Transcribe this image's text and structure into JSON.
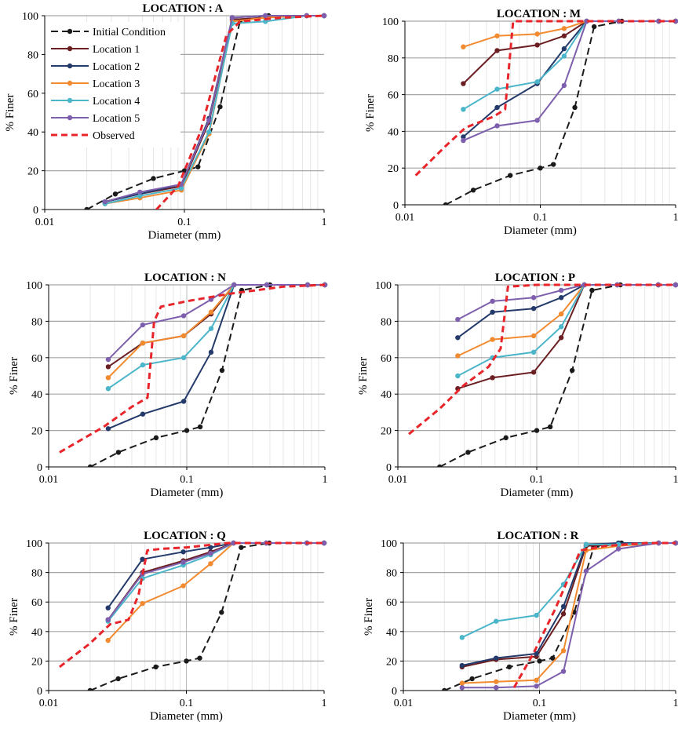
{
  "chart_data": [
    {
      "type": "line",
      "title": "LOCATION : A",
      "xlabel": "Diameter (mm)",
      "ylabel": "% Finer",
      "xscale": "log",
      "xlim": [
        0.01,
        1
      ],
      "ylim": [
        0,
        100
      ],
      "xtick_labels": [
        "0.01",
        "0.1",
        "1"
      ],
      "ytick_labels": [
        "0",
        "20",
        "40",
        "60",
        "80",
        "100"
      ],
      "legend_position": "upper-left",
      "series": [
        {
          "name": "Initial Condition",
          "x": [
            0.02,
            0.032,
            0.06,
            0.1,
            0.125,
            0.18,
            0.25,
            0.4,
            1
          ],
          "y": [
            0,
            8,
            16,
            20,
            22,
            53,
            97,
            100,
            100
          ]
        },
        {
          "name": "Location 1",
          "x": [
            0.027,
            0.048,
            0.095,
            0.15,
            0.22,
            0.38,
            0.75,
            1
          ],
          "y": [
            4,
            8,
            12,
            45,
            98,
            99,
            100,
            100
          ]
        },
        {
          "name": "Location 2",
          "x": [
            0.027,
            0.048,
            0.095,
            0.15,
            0.22,
            0.38,
            0.75,
            1
          ],
          "y": [
            4,
            8,
            13,
            47,
            99,
            100,
            100,
            100
          ]
        },
        {
          "name": "Location 3",
          "x": [
            0.027,
            0.048,
            0.095,
            0.15,
            0.22,
            0.38,
            0.75,
            1
          ],
          "y": [
            3,
            6,
            10,
            39,
            97,
            99,
            100,
            100
          ]
        },
        {
          "name": "Location 4",
          "x": [
            0.027,
            0.048,
            0.095,
            0.15,
            0.22,
            0.38,
            0.75,
            1
          ],
          "y": [
            3,
            7,
            11,
            40,
            96,
            97,
            100,
            100
          ]
        },
        {
          "name": "Location 5",
          "x": [
            0.027,
            0.048,
            0.095,
            0.15,
            0.22,
            0.38,
            0.75,
            1
          ],
          "y": [
            4,
            9,
            13,
            46,
            99,
            100,
            100,
            100
          ]
        },
        {
          "name": "Observed",
          "x": [
            0.063,
            0.09,
            0.13,
            0.2,
            0.25,
            0.5,
            1
          ],
          "y": [
            0,
            12,
            40,
            90,
            97,
            99,
            100
          ]
        }
      ]
    },
    {
      "type": "line",
      "title": "LOCATION : M",
      "xlabel": "Diameter (mm)",
      "ylabel": "% Finer",
      "xscale": "log",
      "xlim": [
        0.01,
        1
      ],
      "ylim": [
        0,
        100
      ],
      "xtick_labels": [
        "0.01",
        "0.1",
        "1"
      ],
      "ytick_labels": [
        "0",
        "20",
        "40",
        "60",
        "80",
        "100"
      ],
      "series": [
        {
          "name": "Initial Condition",
          "x": [
            0.02,
            0.032,
            0.06,
            0.1,
            0.125,
            0.18,
            0.25,
            0.4,
            1
          ],
          "y": [
            0,
            8,
            16,
            20,
            22,
            53,
            97,
            100,
            100
          ]
        },
        {
          "name": "Location 1",
          "x": [
            0.027,
            0.048,
            0.095,
            0.15,
            0.22,
            0.38,
            0.75,
            1
          ],
          "y": [
            66,
            84,
            87,
            92,
            100,
            100,
            100,
            100
          ]
        },
        {
          "name": "Location 2",
          "x": [
            0.027,
            0.048,
            0.095,
            0.15,
            0.22,
            0.38,
            0.75,
            1
          ],
          "y": [
            37,
            53,
            66,
            85,
            100,
            100,
            100,
            100
          ]
        },
        {
          "name": "Location 3",
          "x": [
            0.027,
            0.048,
            0.095,
            0.15,
            0.22,
            0.38,
            0.75,
            1
          ],
          "y": [
            86,
            92,
            93,
            96,
            100,
            100,
            100,
            100
          ]
        },
        {
          "name": "Location 4",
          "x": [
            0.027,
            0.048,
            0.095,
            0.15,
            0.22,
            0.38,
            0.75,
            1
          ],
          "y": [
            52,
            63,
            67,
            81,
            100,
            100,
            100,
            100
          ]
        },
        {
          "name": "Location 5",
          "x": [
            0.027,
            0.048,
            0.095,
            0.15,
            0.22,
            0.38,
            0.75,
            1
          ],
          "y": [
            35,
            43,
            46,
            65,
            100,
            100,
            100,
            100
          ]
        },
        {
          "name": "Observed",
          "x": [
            0.012,
            0.02,
            0.028,
            0.045,
            0.055,
            0.063,
            0.1,
            0.2,
            1
          ],
          "y": [
            16,
            32,
            42,
            48,
            52,
            100,
            100,
            100,
            100
          ]
        }
      ]
    },
    {
      "type": "line",
      "title": "LOCATION : N",
      "xlabel": "Diameter (mm)",
      "ylabel": "% Finer",
      "xscale": "log",
      "xlim": [
        0.01,
        1
      ],
      "ylim": [
        0,
        100
      ],
      "xtick_labels": [
        "0.01",
        "0.1",
        "1"
      ],
      "ytick_labels": [
        "0",
        "20",
        "40",
        "60",
        "80",
        "100"
      ],
      "series": [
        {
          "name": "Initial Condition",
          "x": [
            0.02,
            0.032,
            0.06,
            0.1,
            0.125,
            0.18,
            0.25,
            0.4,
            1
          ],
          "y": [
            0,
            8,
            16,
            20,
            22,
            53,
            97,
            100,
            100
          ]
        },
        {
          "name": "Location 1",
          "x": [
            0.027,
            0.048,
            0.095,
            0.15,
            0.22,
            0.38,
            0.75,
            1
          ],
          "y": [
            55,
            68,
            72,
            84,
            100,
            100,
            100,
            100
          ]
        },
        {
          "name": "Location 2",
          "x": [
            0.027,
            0.048,
            0.095,
            0.15,
            0.22,
            0.38,
            0.75,
            1
          ],
          "y": [
            21,
            29,
            36,
            63,
            100,
            100,
            100,
            100
          ]
        },
        {
          "name": "Location 3",
          "x": [
            0.027,
            0.048,
            0.095,
            0.15,
            0.22,
            0.38,
            0.75,
            1
          ],
          "y": [
            49,
            68,
            72,
            85,
            100,
            100,
            100,
            100
          ]
        },
        {
          "name": "Location 4",
          "x": [
            0.027,
            0.048,
            0.095,
            0.15,
            0.22,
            0.38,
            0.75,
            1
          ],
          "y": [
            43,
            56,
            60,
            76,
            100,
            100,
            100,
            100
          ]
        },
        {
          "name": "Location 5",
          "x": [
            0.027,
            0.048,
            0.095,
            0.15,
            0.22,
            0.38,
            0.75,
            1
          ],
          "y": [
            59,
            78,
            83,
            92,
            100,
            100,
            100,
            100
          ]
        },
        {
          "name": "Observed",
          "x": [
            0.012,
            0.025,
            0.04,
            0.052,
            0.058,
            0.065,
            0.1,
            0.2,
            0.5,
            1
          ],
          "y": [
            8,
            22,
            33,
            38,
            80,
            88,
            91,
            95,
            99,
            100
          ]
        }
      ]
    },
    {
      "type": "line",
      "title": "LOCATION : P",
      "xlabel": "Diameter (mm)",
      "ylabel": "% Finer",
      "xscale": "log",
      "xlim": [
        0.01,
        1
      ],
      "ylim": [
        0,
        100
      ],
      "xtick_labels": [
        "0.01",
        "0.1",
        "1"
      ],
      "ytick_labels": [
        "0",
        "20",
        "40",
        "60",
        "80",
        "100"
      ],
      "series": [
        {
          "name": "Initial Condition",
          "x": [
            0.02,
            0.032,
            0.06,
            0.1,
            0.125,
            0.18,
            0.25,
            0.4,
            1
          ],
          "y": [
            0,
            8,
            16,
            20,
            22,
            53,
            97,
            100,
            100
          ]
        },
        {
          "name": "Location 1",
          "x": [
            0.027,
            0.048,
            0.095,
            0.15,
            0.22,
            0.38,
            0.75,
            1
          ],
          "y": [
            43,
            49,
            52,
            71,
            100,
            100,
            100,
            100
          ]
        },
        {
          "name": "Location 2",
          "x": [
            0.027,
            0.048,
            0.095,
            0.15,
            0.22,
            0.38,
            0.75,
            1
          ],
          "y": [
            71,
            85,
            87,
            93,
            100,
            100,
            100,
            100
          ]
        },
        {
          "name": "Location 3",
          "x": [
            0.027,
            0.048,
            0.095,
            0.15,
            0.22,
            0.38,
            0.75,
            1
          ],
          "y": [
            61,
            70,
            72,
            84,
            100,
            100,
            100,
            100
          ]
        },
        {
          "name": "Location 4",
          "x": [
            0.027,
            0.048,
            0.095,
            0.15,
            0.22,
            0.38,
            0.75,
            1
          ],
          "y": [
            50,
            60,
            63,
            77,
            100,
            100,
            100,
            100
          ]
        },
        {
          "name": "Location 5",
          "x": [
            0.027,
            0.048,
            0.095,
            0.15,
            0.22,
            0.38,
            0.75,
            1
          ],
          "y": [
            81,
            91,
            93,
            97,
            100,
            100,
            100,
            100
          ]
        },
        {
          "name": "Observed",
          "x": [
            0.012,
            0.02,
            0.03,
            0.045,
            0.055,
            0.062,
            0.1,
            0.2,
            1
          ],
          "y": [
            18,
            32,
            45,
            55,
            65,
            99,
            100,
            100,
            100
          ]
        }
      ]
    },
    {
      "type": "line",
      "title": "LOCATION : Q",
      "xlabel": "Diameter (mm)",
      "ylabel": "% Finer",
      "xscale": "log",
      "xlim": [
        0.01,
        1
      ],
      "ylim": [
        0,
        100
      ],
      "xtick_labels": [
        "0.01",
        "0.1",
        "1"
      ],
      "ytick_labels": [
        "0",
        "20",
        "40",
        "60",
        "80",
        "100"
      ],
      "series": [
        {
          "name": "Initial Condition",
          "x": [
            0.02,
            0.032,
            0.06,
            0.1,
            0.125,
            0.18,
            0.25,
            0.4,
            1
          ],
          "y": [
            0,
            8,
            16,
            20,
            22,
            53,
            97,
            100,
            100
          ]
        },
        {
          "name": "Location 1",
          "x": [
            0.027,
            0.048,
            0.095,
            0.15,
            0.22,
            0.38,
            0.75,
            1
          ],
          "y": [
            48,
            80,
            88,
            94,
            100,
            100,
            100,
            100
          ]
        },
        {
          "name": "Location 2",
          "x": [
            0.027,
            0.048,
            0.095,
            0.15,
            0.22,
            0.38,
            0.75,
            1
          ],
          "y": [
            56,
            89,
            94,
            97,
            100,
            100,
            100,
            100
          ]
        },
        {
          "name": "Location 3",
          "x": [
            0.027,
            0.048,
            0.095,
            0.15,
            0.22,
            0.38,
            0.75,
            1
          ],
          "y": [
            34,
            59,
            71,
            86,
            100,
            100,
            100,
            100
          ]
        },
        {
          "name": "Location 4",
          "x": [
            0.027,
            0.048,
            0.095,
            0.15,
            0.22,
            0.38,
            0.75,
            1
          ],
          "y": [
            47,
            76,
            85,
            92,
            100,
            100,
            100,
            100
          ]
        },
        {
          "name": "Location 5",
          "x": [
            0.027,
            0.048,
            0.095,
            0.15,
            0.22,
            0.38,
            0.75,
            1
          ],
          "y": [
            48,
            79,
            87,
            93,
            100,
            100,
            100,
            100
          ]
        },
        {
          "name": "Observed",
          "x": [
            0.012,
            0.02,
            0.028,
            0.038,
            0.045,
            0.052,
            0.065,
            0.1,
            0.2,
            1
          ],
          "y": [
            16,
            32,
            45,
            48,
            65,
            95,
            96,
            97,
            100,
            100
          ]
        }
      ]
    },
    {
      "type": "line",
      "title": "LOCATION : R",
      "xlabel": "Diameter (mm)",
      "ylabel": "% Finer",
      "xscale": "log",
      "xlim": [
        0.01,
        1
      ],
      "ylim": [
        0,
        100
      ],
      "xtick_labels": [
        "0.01",
        "0.1",
        "1"
      ],
      "ytick_labels": [
        "0",
        "20",
        "40",
        "60",
        "80",
        "100"
      ],
      "series": [
        {
          "name": "Initial Condition",
          "x": [
            0.02,
            0.032,
            0.06,
            0.1,
            0.125,
            0.18,
            0.25,
            0.4,
            1
          ],
          "y": [
            0,
            8,
            16,
            20,
            22,
            53,
            97,
            100,
            100
          ]
        },
        {
          "name": "Location 1",
          "x": [
            0.027,
            0.048,
            0.095,
            0.15,
            0.22,
            0.38,
            0.75,
            1
          ],
          "y": [
            16,
            21,
            23,
            52,
            98,
            99,
            100,
            100
          ]
        },
        {
          "name": "Location 2",
          "x": [
            0.027,
            0.048,
            0.095,
            0.15,
            0.22,
            0.38,
            0.75,
            1
          ],
          "y": [
            17,
            22,
            25,
            57,
            99,
            100,
            100,
            100
          ]
        },
        {
          "name": "Location 3",
          "x": [
            0.027,
            0.048,
            0.095,
            0.15,
            0.22,
            0.38,
            0.75,
            1
          ],
          "y": [
            5,
            6,
            7,
            27,
            95,
            98,
            100,
            100
          ]
        },
        {
          "name": "Location 4",
          "x": [
            0.027,
            0.048,
            0.095,
            0.15,
            0.22,
            0.38,
            0.75,
            1
          ],
          "y": [
            36,
            47,
            51,
            72,
            99,
            99,
            100,
            100
          ]
        },
        {
          "name": "Location 5",
          "x": [
            0.027,
            0.048,
            0.095,
            0.15,
            0.22,
            0.38,
            0.75,
            1
          ],
          "y": [
            2,
            2,
            3,
            13,
            81,
            96,
            100,
            100
          ]
        },
        {
          "name": "Observed",
          "x": [
            0.065,
            0.09,
            0.13,
            0.2,
            0.3,
            0.6,
            1
          ],
          "y": [
            2,
            25,
            55,
            95,
            98,
            100,
            100
          ]
        }
      ]
    }
  ],
  "series_styles": {
    "Initial Condition": {
      "color": "#1a1a1a",
      "dash": "9,5"
    },
    "Location 1": {
      "color": "#6b1f22",
      "dash": ""
    },
    "Location 2": {
      "color": "#233a6b",
      "dash": ""
    },
    "Location 3": {
      "color": "#f28a30",
      "dash": ""
    },
    "Location 4": {
      "color": "#4bb5c9",
      "dash": ""
    },
    "Location 5": {
      "color": "#7e5fad",
      "dash": ""
    },
    "Observed": {
      "color": "#e8252b",
      "dash": "8,5"
    }
  }
}
